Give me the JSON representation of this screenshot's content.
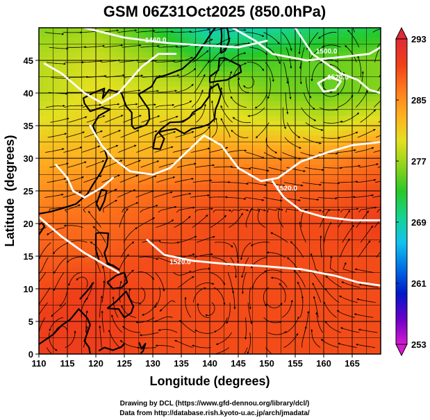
{
  "chart_data": {
    "type": "heatmap",
    "title": "GSM 06Z31Oct2025 (850.0hPa)",
    "xlabel": "Longitude (degrees)",
    "ylabel": "Latitude  (degrees)",
    "xlim": [
      110,
      170
    ],
    "ylim": [
      0,
      50
    ],
    "xticks": [
      110,
      115,
      120,
      125,
      130,
      135,
      140,
      145,
      150,
      155,
      160,
      165
    ],
    "yticks": [
      0,
      5,
      10,
      15,
      20,
      25,
      30,
      35,
      40,
      45
    ],
    "grid": true,
    "colorbar": {
      "min": 253,
      "max": 293,
      "ticks": [
        253,
        261,
        269,
        277,
        285,
        293
      ],
      "colors": [
        "#d41bd0",
        "#6a00c8",
        "#0018c8",
        "#0070e6",
        "#12c3ee",
        "#16d490",
        "#28c828",
        "#8ed41a",
        "#e4e020",
        "#ffb020",
        "#ff7a1c",
        "#f04018",
        "#e02a36"
      ]
    },
    "temperature_grid": {
      "lon": [
        110,
        120,
        130,
        140,
        150,
        160,
        170
      ],
      "lat": [
        50,
        45,
        40,
        35,
        30,
        25,
        20,
        15,
        10,
        5,
        0
      ],
      "values": [
        [
          276,
          277,
          273,
          268,
          269,
          271,
          272
        ],
        [
          278,
          279,
          277,
          273,
          274,
          275,
          276
        ],
        [
          278,
          280,
          279,
          279,
          276,
          275,
          276
        ],
        [
          280,
          281,
          281,
          281,
          280,
          279,
          281
        ],
        [
          283,
          283,
          283,
          285,
          285,
          285,
          287
        ],
        [
          285,
          286,
          287,
          288,
          288,
          288,
          289
        ],
        [
          287,
          287,
          288,
          289,
          289,
          289,
          290
        ],
        [
          288,
          288,
          289,
          289,
          289,
          289,
          289
        ],
        [
          289,
          290,
          289,
          289,
          289,
          289,
          289
        ],
        [
          290,
          290,
          289,
          289,
          289,
          289,
          289
        ],
        [
          290,
          290,
          289,
          289,
          289,
          289,
          289
        ]
      ]
    },
    "contours": [
      {
        "label": "1460.0",
        "points": [
          [
            118,
            50
          ],
          [
            125,
            48.5
          ],
          [
            132,
            47.7
          ],
          [
            137,
            47.4
          ],
          [
            145,
            47
          ],
          [
            150,
            48
          ]
        ]
      },
      {
        "label": "1500.0",
        "points": [
          [
            111,
            44.5
          ],
          [
            114,
            43
          ],
          [
            118,
            40
          ],
          [
            121,
            38.5
          ],
          [
            124,
            40
          ],
          [
            128,
            44
          ],
          [
            131,
            46
          ],
          [
            134,
            46
          ]
        ]
      },
      {
        "label": "1500.0",
        "points": [
          [
            144,
            50
          ],
          [
            148,
            48
          ],
          [
            151,
            46
          ],
          [
            157,
            45
          ],
          [
            163,
            45.5
          ],
          [
            168,
            46
          ],
          [
            170,
            47
          ]
        ]
      },
      {
        "label": "1520.0",
        "points": [
          [
            161,
            42.5
          ],
          [
            159,
            41.5
          ],
          [
            160,
            40.2
          ],
          [
            162,
            40.5
          ],
          [
            163,
            41.8
          ],
          [
            161,
            42.5
          ]
        ]
      },
      {
        "label": "1520.0",
        "points": [
          [
            155,
            50
          ],
          [
            158,
            46
          ],
          [
            163,
            43
          ],
          [
            166,
            42
          ],
          [
            168,
            40.5
          ],
          [
            170,
            40
          ]
        ]
      },
      {
        "label": "1520.0",
        "points": [
          [
            119,
            35
          ],
          [
            121,
            32
          ],
          [
            123,
            30
          ],
          [
            126,
            28
          ],
          [
            130,
            27.5
          ],
          [
            133,
            28.5
          ],
          [
            136,
            31
          ],
          [
            139,
            33.5
          ],
          [
            142,
            32
          ],
          [
            145,
            28.5
          ],
          [
            149,
            26.5
          ],
          [
            152,
            27
          ],
          [
            156,
            29.5
          ],
          [
            161,
            31
          ],
          [
            165,
            32
          ],
          [
            170,
            32.5
          ]
        ]
      },
      {
        "label": "1520.0",
        "points": [
          [
            113,
            29
          ],
          [
            115,
            27
          ],
          [
            116,
            25
          ],
          [
            118,
            24
          ],
          [
            121,
            25.5
          ],
          [
            123,
            27
          ]
        ]
      },
      {
        "label": "1520.0",
        "points": [
          [
            151,
            26.5
          ],
          [
            153,
            24
          ],
          [
            156,
            22
          ],
          [
            160,
            21
          ],
          [
            165,
            20.5
          ],
          [
            170,
            20.5
          ]
        ]
      },
      {
        "label": "1520.0",
        "points": [
          [
            129,
            17.5
          ],
          [
            132,
            15.2
          ],
          [
            137,
            14.3
          ],
          [
            143,
            13.8
          ],
          [
            149,
            13.5
          ],
          [
            156,
            13
          ],
          [
            162,
            12
          ],
          [
            166,
            11
          ],
          [
            170,
            10.5
          ]
        ]
      },
      {
        "label": "",
        "points": [
          [
            110,
            21
          ],
          [
            114,
            18
          ],
          [
            118,
            15.5
          ],
          [
            121,
            14
          ],
          [
            124,
            12.5
          ]
        ]
      }
    ],
    "contour_labels": [
      {
        "text": "1460.0",
        "lon": 130.5,
        "lat": 48.2
      },
      {
        "text": "1500.0",
        "lon": 160.5,
        "lat": 46.5
      },
      {
        "text": "1520.0",
        "lon": 162.5,
        "lat": 42.5
      },
      {
        "text": "1520.0",
        "lon": 134.8,
        "lat": 14.2
      },
      {
        "text": "1520.0",
        "lon": 153.5,
        "lat": 25.5
      }
    ],
    "vortices": [
      {
        "lon": 140,
        "lat": 7,
        "sense": -1
      },
      {
        "lon": 118,
        "lat": 11,
        "sense": 1
      },
      {
        "lon": 161,
        "lat": 41.5,
        "sense": 1
      },
      {
        "lon": 151,
        "lat": 9,
        "sense": 1
      },
      {
        "lon": 127,
        "lat": 9,
        "sense": -1
      },
      {
        "lon": 114,
        "lat": 3,
        "sense": 1
      },
      {
        "lon": 147,
        "lat": 42,
        "sense": -1
      }
    ],
    "coastlines": [
      {
        "name": "Japan",
        "points": [
          [
            130.0,
            31.5
          ],
          [
            131.3,
            31.4
          ],
          [
            132,
            33
          ],
          [
            131,
            34
          ],
          [
            132.5,
            34.3
          ],
          [
            134,
            34.5
          ],
          [
            135.5,
            33.8
          ],
          [
            136.8,
            34.5
          ],
          [
            138.5,
            34.8
          ],
          [
            139.8,
            35.2
          ],
          [
            140.8,
            36
          ],
          [
            141,
            37.5
          ],
          [
            141.5,
            38.5
          ],
          [
            142,
            40
          ],
          [
            141.4,
            41.4
          ],
          [
            140,
            40.6
          ],
          [
            139.9,
            39.5
          ],
          [
            138.5,
            37.8
          ],
          [
            137,
            37
          ],
          [
            136.5,
            36.3
          ],
          [
            135.3,
            35.6
          ],
          [
            133,
            35.5
          ],
          [
            131.5,
            34.5
          ],
          [
            130.5,
            33.5
          ],
          [
            130,
            31.5
          ]
        ]
      },
      {
        "name": "Hokkaido",
        "points": [
          [
            140,
            41.6
          ],
          [
            141.2,
            41.8
          ],
          [
            143,
            42
          ],
          [
            145.5,
            43.2
          ],
          [
            145.3,
            44.2
          ],
          [
            142.5,
            45.4
          ],
          [
            141.7,
            45.3
          ],
          [
            141.5,
            43.5
          ],
          [
            140,
            42.5
          ],
          [
            140,
            41.6
          ]
        ]
      },
      {
        "name": "Sakhalin",
        "points": [
          [
            141.9,
            46.1
          ],
          [
            142.7,
            46.5
          ],
          [
            143.4,
            48
          ],
          [
            143.2,
            49.5
          ],
          [
            143,
            50
          ],
          [
            142,
            50
          ],
          [
            142.1,
            48.8
          ],
          [
            141.9,
            46.1
          ]
        ]
      },
      {
        "name": "Korea",
        "points": [
          [
            124.5,
            40
          ],
          [
            125.3,
            38
          ],
          [
            126.3,
            37
          ],
          [
            126.3,
            35
          ],
          [
            126.8,
            34.5
          ],
          [
            128.8,
            35.1
          ],
          [
            129.4,
            36
          ],
          [
            129.3,
            37.5
          ],
          [
            128.5,
            38.5
          ],
          [
            127.5,
            39.8
          ],
          [
            129.8,
            41
          ],
          [
            130.6,
            42.3
          ]
        ]
      },
      {
        "name": "Mainland",
        "points": [
          [
            110,
            21.5
          ],
          [
            112,
            21.8
          ],
          [
            114,
            22.3
          ],
          [
            116.5,
            23
          ],
          [
            118.5,
            24.5
          ],
          [
            119.5,
            26
          ],
          [
            121,
            28
          ],
          [
            122,
            30
          ],
          [
            121.5,
            31.5
          ],
          [
            120.5,
            32.5
          ],
          [
            119.5,
            35
          ],
          [
            120.5,
            36.5
          ],
          [
            122.5,
            37.5
          ],
          [
            121,
            37.8
          ],
          [
            119,
            37.2
          ],
          [
            118,
            38.4
          ],
          [
            117.8,
            39.2
          ],
          [
            119.5,
            40
          ],
          [
            121.5,
            40.7
          ],
          [
            121.2,
            39.2
          ],
          [
            122.3,
            40.5
          ],
          [
            124.4,
            40
          ]
        ]
      },
      {
        "name": "Russian coast",
        "points": [
          [
            130.6,
            42.3
          ],
          [
            132.5,
            42.8
          ],
          [
            135.2,
            43.7
          ],
          [
            137.5,
            45.5
          ],
          [
            139,
            47.5
          ],
          [
            140.5,
            49.5
          ],
          [
            141,
            50
          ]
        ]
      },
      {
        "name": "Taiwan",
        "points": [
          [
            120.1,
            23
          ],
          [
            120.7,
            22
          ],
          [
            121.5,
            23.5
          ],
          [
            121.9,
            25
          ],
          [
            121,
            25.2
          ],
          [
            120.1,
            23
          ]
        ]
      },
      {
        "name": "Hainan",
        "points": [
          [
            108.6,
            19.2
          ],
          [
            110.5,
            20.1
          ],
          [
            111,
            19.6
          ],
          [
            110,
            18.3
          ],
          [
            108.6,
            19.2
          ]
        ]
      },
      {
        "name": "Luzon",
        "points": [
          [
            120,
            18.5
          ],
          [
            120.7,
            18.6
          ],
          [
            122.2,
            18.5
          ],
          [
            122,
            16.5
          ],
          [
            121.5,
            15.5
          ],
          [
            122,
            14
          ],
          [
            124,
            13
          ],
          [
            123,
            13.6
          ],
          [
            121.5,
            13.8
          ],
          [
            120.6,
            14.2
          ],
          [
            120,
            16
          ],
          [
            120,
            18.5
          ]
        ]
      },
      {
        "name": "Mindanao",
        "points": [
          [
            122,
            7
          ],
          [
            123.5,
            8
          ],
          [
            125.3,
            9.6
          ],
          [
            126.6,
            7.3
          ],
          [
            126.2,
            6.3
          ],
          [
            125,
            5.6
          ],
          [
            124,
            6.9
          ],
          [
            122,
            7
          ]
        ]
      },
      {
        "name": "Visayas",
        "points": [
          [
            122,
            11
          ],
          [
            123,
            10
          ],
          [
            124.5,
            10.2
          ],
          [
            125.5,
            11
          ],
          [
            125,
            12.5
          ],
          [
            123.5,
            12
          ],
          [
            122,
            11
          ]
        ]
      },
      {
        "name": "Borneo",
        "points": [
          [
            110,
            1.5
          ],
          [
            112.5,
            3
          ],
          [
            114,
            4.4
          ],
          [
            115.5,
            5.3
          ],
          [
            117,
            6.9
          ],
          [
            118.5,
            5.5
          ],
          [
            119,
            4.5
          ],
          [
            118,
            2
          ],
          [
            118.8,
            1
          ],
          [
            119,
            0
          ]
        ]
      },
      {
        "name": "Sulawesi",
        "points": [
          [
            120.5,
            0.5
          ],
          [
            121.5,
            1
          ],
          [
            123,
            0.6
          ],
          [
            124.5,
            1.1
          ],
          [
            125,
            1.6
          ]
        ]
      },
      {
        "name": "Halmahera",
        "points": [
          [
            127.6,
            1.8
          ],
          [
            128,
            0.8
          ],
          [
            128.7,
            1.6
          ],
          [
            128.3,
            0.5
          ],
          [
            127.8,
            0
          ]
        ]
      },
      {
        "name": "Palawan",
        "points": [
          [
            117.2,
            8.4
          ],
          [
            118.8,
            10
          ],
          [
            119.6,
            11
          ]
        ]
      }
    ]
  },
  "footer": {
    "line1": "Drawing by DCL (https://www.gfd-dennou.org/library/dcl/)",
    "line2": "Data from http://database.rish.kyoto-u.ac.jp/arch/jmadata/"
  },
  "colorbar_labels": [
    "293",
    "285",
    "277",
    "269",
    "261",
    "253"
  ]
}
